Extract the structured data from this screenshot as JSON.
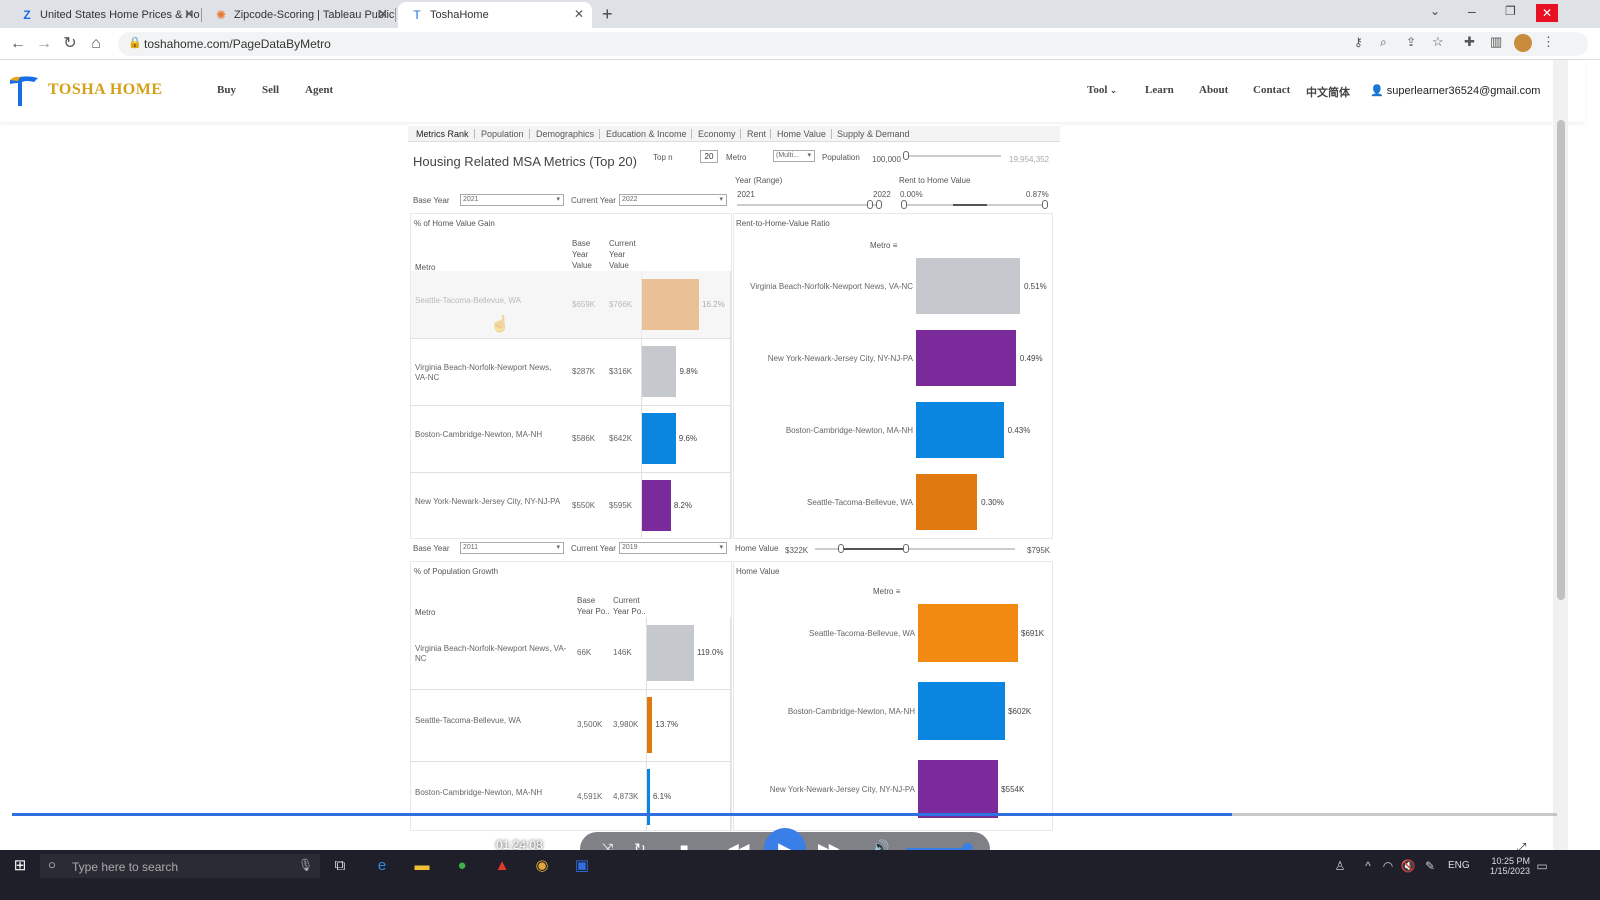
{
  "browser": {
    "tabs": [
      {
        "title": "United States Home Prices & Ho",
        "icon": "zillow-icon"
      },
      {
        "title": "Zipcode-Scoring | Tableau Public",
        "icon": "tableau-icon"
      },
      {
        "title": "ToshaHome",
        "icon": "tosha-icon"
      }
    ],
    "url": "toshahome.com/PageDataByMetro"
  },
  "site": {
    "logo": "TOSHA HOME",
    "nav_left": [
      "Buy",
      "Sell",
      "Agent"
    ],
    "nav_right": [
      "Tool",
      "Learn",
      "About",
      "Contact",
      "中文简体"
    ],
    "user": "superlearner36524@gmail.com"
  },
  "viz": {
    "tabs": [
      "Metrics Rank",
      "Population",
      "Demographics",
      "Education & Income",
      "Economy",
      "Rent",
      "Home Value",
      "Supply & Demand"
    ],
    "title": "Housing Related MSA Metrics (Top 20)",
    "top_n_label": "Top n",
    "top_n_value": "20",
    "metro_label": "Metro",
    "metro_value": "(Multi...",
    "population_label": "Population",
    "population_min": "100,000",
    "population_max": "19,954,352",
    "year_range_label": "Year (Range)",
    "year_range_min": "2021",
    "year_range_max": "2022",
    "rent_ratio_label": "Rent to Home Value",
    "rent_ratio_min": "0.00%",
    "rent_ratio_max": "0.87%",
    "section1": {
      "base_year_label": "Base Year",
      "base_year": "2021",
      "current_year_label": "Current Year",
      "current_year": "2022",
      "left_title": "% of Home Value Gain",
      "col_metro": "Metro",
      "col_base": "Base\nYear\nValue",
      "col_current": "Current\nYear\nValue",
      "rows": [
        {
          "metro": "Seattle-Tacoma-Bellevue, WA",
          "base": "$659K",
          "current": "$766K",
          "pct": "16.2%"
        },
        {
          "metro": "Virginia Beach-Norfolk-Newport News, VA-NC",
          "base": "$287K",
          "current": "$316K",
          "pct": "9.8%"
        },
        {
          "metro": "Boston-Cambridge-Newton, MA-NH",
          "base": "$586K",
          "current": "$642K",
          "pct": "9.6%"
        },
        {
          "metro": "New York-Newark-Jersey City, NY-NJ-PA",
          "base": "$550K",
          "current": "$595K",
          "pct": "8.2%"
        }
      ],
      "right_title": "Rent-to-Home-Value Ratio",
      "right_header": "Metro",
      "right_rows": [
        {
          "metro": "Virginia Beach-Norfolk-Newport News, VA-NC",
          "value": "0.51%"
        },
        {
          "metro": "New York-Newark-Jersey City, NY-NJ-PA",
          "value": "0.49%"
        },
        {
          "metro": "Boston-Cambridge-Newton, MA-NH",
          "value": "0.43%"
        },
        {
          "metro": "Seattle-Tacoma-Bellevue, WA",
          "value": "0.30%"
        }
      ]
    },
    "section2": {
      "base_year_label": "Base Year",
      "base_year": "2011",
      "current_year_label": "Current Year",
      "current_year": "2019",
      "home_value_label": "Home Value",
      "home_value_min": "$322K",
      "home_value_max": "$795K",
      "left_title": "% of Population Growth",
      "col_metro": "Metro",
      "col_base": "Base\nYear Po..",
      "col_current": "Current\nYear Po..",
      "rows": [
        {
          "metro": "Virginia Beach-Norfolk-Newport News, VA-NC",
          "base": "66K",
          "current": "146K",
          "pct": "119.0%"
        },
        {
          "metro": "Seattle-Tacoma-Bellevue, WA",
          "base": "3,500K",
          "current": "3,980K",
          "pct": "13.7%"
        },
        {
          "metro": "Boston-Cambridge-Newton, MA-NH",
          "base": "4,591K",
          "current": "4,873K",
          "pct": "6.1%"
        }
      ],
      "right_title": "Home Value",
      "right_header": "Metro",
      "right_rows": [
        {
          "metro": "Seattle-Tacoma-Bellevue, WA",
          "value": "$691K"
        },
        {
          "metro": "Boston-Cambridge-Newton, MA-NH",
          "value": "$602K"
        },
        {
          "metro": "New York-Newark-Jersey City, NY-NJ-PA",
          "value": "$554K"
        }
      ]
    }
  },
  "colors": {
    "seattle": "#e07a10",
    "virginia": "#c5c9ce",
    "boston": "#0a86e0",
    "newyork": "#7b2a9c",
    "seattle_light": "#f28a12"
  },
  "player": {
    "time": "01:24:08"
  },
  "taskbar": {
    "search_placeholder": "Type here to search",
    "lang": "ENG",
    "time": "10:25 PM",
    "date": "1/15/2023"
  }
}
